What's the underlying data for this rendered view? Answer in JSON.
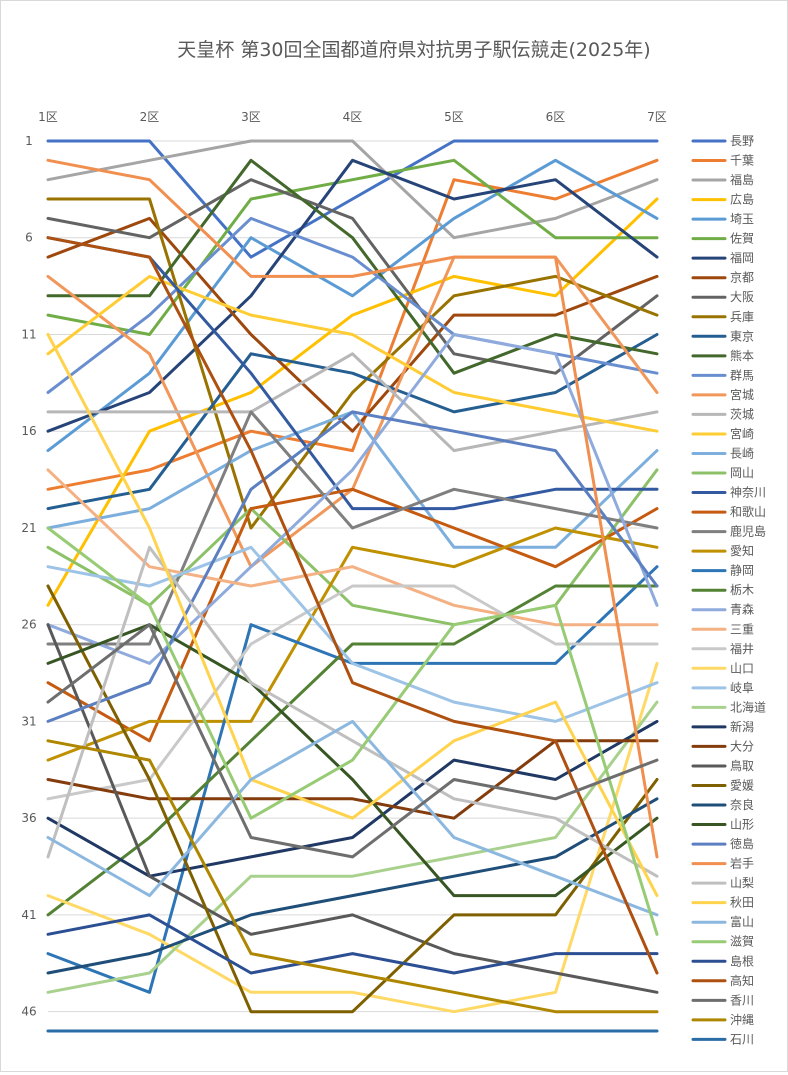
{
  "chart_data": {
    "type": "line",
    "title": "天皇杯 第30回全国都道府県対抗男子駅伝競走(2025年)",
    "categories": [
      "1区",
      "2区",
      "3区",
      "4区",
      "5区",
      "6区",
      "7区"
    ],
    "y_axis": {
      "reversed": true,
      "min": 1,
      "max": 47,
      "ticks": [
        1,
        6,
        11,
        16,
        21,
        26,
        31,
        36,
        41,
        46
      ]
    },
    "grid": true,
    "legend_position": "right",
    "series": [
      {
        "name": "長野",
        "color": "#4472C4",
        "values": [
          1,
          1,
          7,
          4,
          1,
          1,
          1
        ]
      },
      {
        "name": "千葉",
        "color": "#ED7D31",
        "values": [
          19,
          18,
          16,
          17,
          3,
          4,
          2
        ]
      },
      {
        "name": "福島",
        "color": "#A5A5A5",
        "values": [
          3,
          2,
          1,
          1,
          6,
          5,
          3
        ]
      },
      {
        "name": "広島",
        "color": "#FFC000",
        "values": [
          25,
          16,
          14,
          10,
          8,
          9,
          4
        ]
      },
      {
        "name": "埼玉",
        "color": "#5B9BD5",
        "values": [
          17,
          13,
          6,
          9,
          5,
          2,
          5
        ]
      },
      {
        "name": "佐賀",
        "color": "#70AD47",
        "values": [
          10,
          11,
          4,
          3,
          2,
          6,
          6
        ]
      },
      {
        "name": "福岡",
        "color": "#264478",
        "values": [
          16,
          14,
          9,
          2,
          4,
          3,
          7
        ]
      },
      {
        "name": "京都",
        "color": "#9E480E",
        "values": [
          7,
          5,
          11,
          16,
          10,
          10,
          8
        ]
      },
      {
        "name": "大阪",
        "color": "#636363",
        "values": [
          5,
          6,
          3,
          5,
          12,
          13,
          9
        ]
      },
      {
        "name": "兵庫",
        "color": "#997300",
        "values": [
          4,
          4,
          21,
          14,
          9,
          8,
          10
        ]
      },
      {
        "name": "東京",
        "color": "#255E91",
        "values": [
          20,
          19,
          12,
          13,
          15,
          14,
          11
        ]
      },
      {
        "name": "熊本",
        "color": "#43682B",
        "values": [
          9,
          9,
          2,
          6,
          13,
          11,
          12
        ]
      },
      {
        "name": "群馬",
        "color": "#698ED0",
        "values": [
          14,
          10,
          5,
          7,
          11,
          12,
          13
        ]
      },
      {
        "name": "宮城",
        "color": "#F1975A",
        "values": [
          8,
          12,
          23,
          19,
          7,
          7,
          14
        ]
      },
      {
        "name": "茨城",
        "color": "#B7B7B7",
        "values": [
          15,
          15,
          15,
          12,
          17,
          16,
          15
        ]
      },
      {
        "name": "宮崎",
        "color": "#FFCD33",
        "values": [
          12,
          8,
          10,
          11,
          14,
          15,
          16
        ]
      },
      {
        "name": "長崎",
        "color": "#7CAFDD",
        "values": [
          21,
          20,
          17,
          15,
          22,
          22,
          17
        ]
      },
      {
        "name": "岡山",
        "color": "#8CC168",
        "values": [
          22,
          25,
          20,
          25,
          26,
          25,
          18
        ]
      },
      {
        "name": "神奈川",
        "color": "#335AA1",
        "values": [
          6,
          7,
          13,
          20,
          20,
          19,
          19
        ]
      },
      {
        "name": "和歌山",
        "color": "#C55A11",
        "values": [
          29,
          32,
          20,
          19,
          21,
          23,
          20
        ]
      },
      {
        "name": "鹿児島",
        "color": "#7F7F7F",
        "values": [
          27,
          27,
          15,
          21,
          19,
          20,
          21
        ]
      },
      {
        "name": "愛知",
        "color": "#BF9000",
        "values": [
          33,
          31,
          31,
          22,
          23,
          21,
          22
        ]
      },
      {
        "name": "静岡",
        "color": "#2E75B6",
        "values": [
          43,
          45,
          26,
          28,
          28,
          28,
          23
        ]
      },
      {
        "name": "栃木",
        "color": "#548235",
        "values": [
          41,
          37,
          32,
          27,
          27,
          24,
          24
        ]
      },
      {
        "name": "青森",
        "color": "#8FAADC",
        "values": [
          26,
          28,
          23,
          18,
          11,
          12,
          25
        ]
      },
      {
        "name": "三重",
        "color": "#F4B183",
        "values": [
          18,
          23,
          24,
          23,
          25,
          26,
          26
        ]
      },
      {
        "name": "福井",
        "color": "#C9C9C9",
        "values": [
          35,
          34,
          27,
          24,
          24,
          27,
          27
        ]
      },
      {
        "name": "山口",
        "color": "#FFD966",
        "values": [
          40,
          42,
          45,
          45,
          46,
          45,
          28
        ]
      },
      {
        "name": "岐阜",
        "color": "#9DC3E6",
        "values": [
          23,
          24,
          22,
          28,
          30,
          31,
          29
        ]
      },
      {
        "name": "北海道",
        "color": "#A9D18E",
        "values": [
          45,
          44,
          39,
          39,
          38,
          37,
          30
        ]
      },
      {
        "name": "新潟",
        "color": "#203864",
        "values": [
          36,
          39,
          38,
          37,
          33,
          34,
          31
        ]
      },
      {
        "name": "大分",
        "color": "#843C0C",
        "values": [
          34,
          35,
          35,
          35,
          36,
          32,
          32
        ]
      },
      {
        "name": "鳥取",
        "color": "#595959",
        "values": [
          26,
          39,
          42,
          41,
          43,
          44,
          45
        ]
      },
      {
        "name": "愛媛",
        "color": "#7F6000",
        "values": [
          24,
          34,
          46,
          46,
          41,
          41,
          34
        ]
      },
      {
        "name": "奈良",
        "color": "#1F4E79",
        "values": [
          44,
          43,
          41,
          40,
          39,
          38,
          35
        ]
      },
      {
        "name": "山形",
        "color": "#375623",
        "values": [
          28,
          26,
          29,
          34,
          40,
          40,
          36
        ]
      },
      {
        "name": "徳島",
        "color": "#5B7FC0",
        "values": [
          31,
          29,
          19,
          15,
          16,
          17,
          24
        ]
      },
      {
        "name": "岩手",
        "color": "#F08F4F",
        "values": [
          2,
          3,
          8,
          8,
          7,
          7,
          38
        ]
      },
      {
        "name": "山梨",
        "color": "#BFBFBF",
        "values": [
          38,
          22,
          29,
          32,
          35,
          36,
          39
        ]
      },
      {
        "name": "秋田",
        "color": "#FFD34D",
        "values": [
          11,
          21,
          34,
          36,
          32,
          30,
          40
        ]
      },
      {
        "name": "富山",
        "color": "#8CB8E0",
        "values": [
          37,
          40,
          34,
          31,
          37,
          39,
          41
        ]
      },
      {
        "name": "滋賀",
        "color": "#97CB74",
        "values": [
          21,
          25,
          36,
          33,
          26,
          25,
          42
        ]
      },
      {
        "name": "島根",
        "color": "#2C4F93",
        "values": [
          42,
          41,
          44,
          43,
          44,
          43,
          43
        ]
      },
      {
        "name": "高知",
        "color": "#AE5010",
        "values": [
          6,
          7,
          17,
          29,
          31,
          32,
          44
        ]
      },
      {
        "name": "香川",
        "color": "#6E6E6E",
        "values": [
          30,
          26,
          37,
          38,
          34,
          35,
          33
        ]
      },
      {
        "name": "沖縄",
        "color": "#AE8600",
        "values": [
          32,
          33,
          43,
          44,
          45,
          46,
          46
        ]
      },
      {
        "name": "石川",
        "color": "#2A6CA6",
        "values": [
          47,
          47,
          47,
          47,
          47,
          47,
          47
        ]
      }
    ]
  }
}
